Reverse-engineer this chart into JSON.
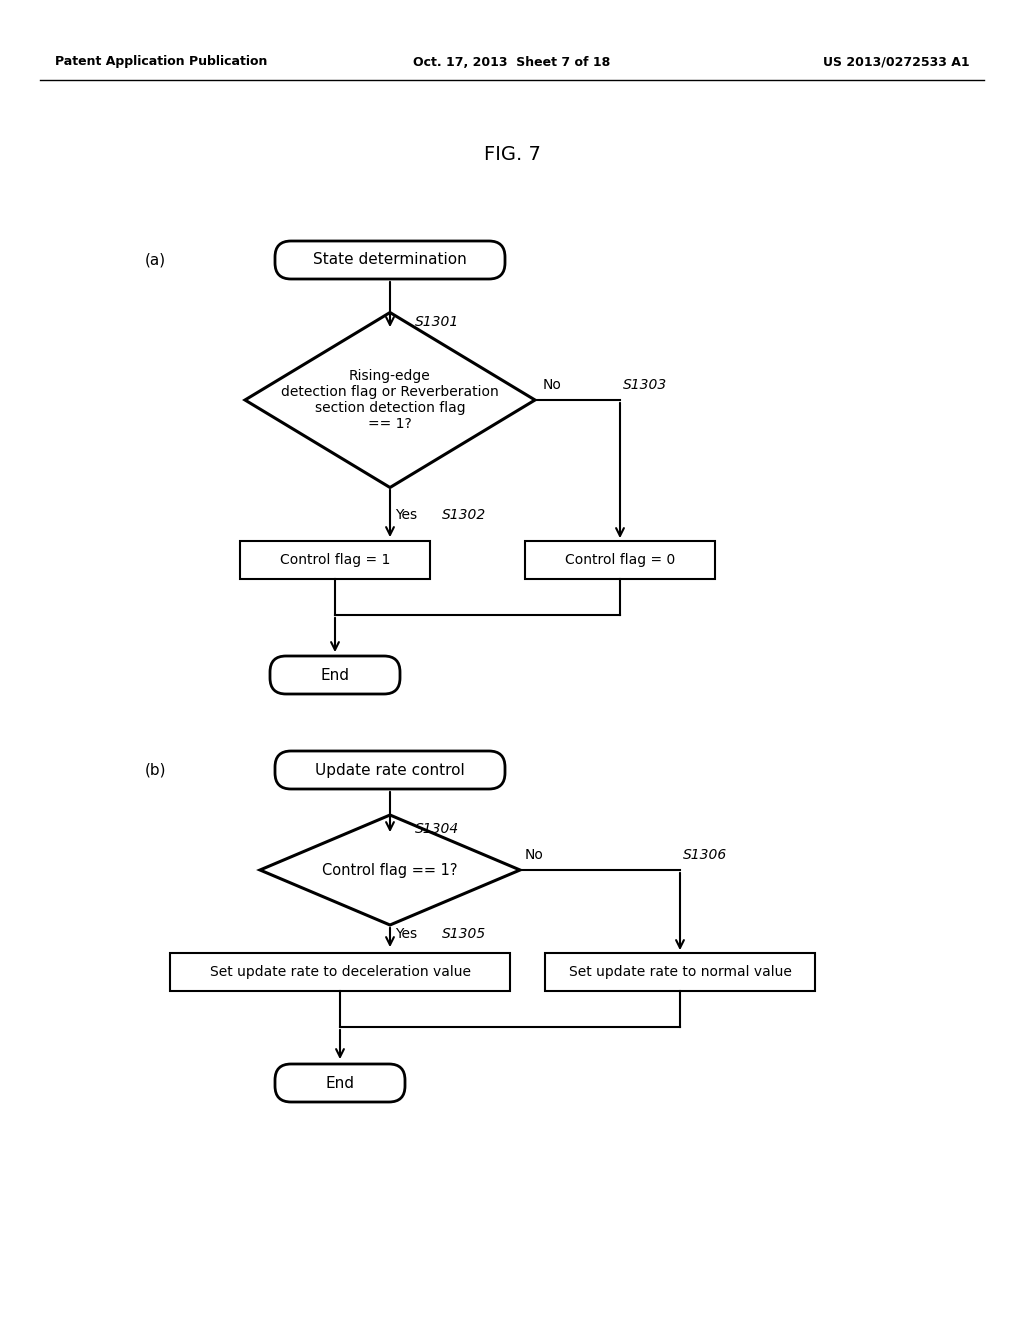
{
  "background_color": "#ffffff",
  "fig_label": "FIG. 7",
  "header_left": "Patent Application Publication",
  "header_center": "Oct. 17, 2013  Sheet 7 of 18",
  "header_right": "US 2013/0272533 A1",
  "diagram_a": {
    "label": "(a)",
    "start_label": "State determination",
    "diamond_label": "Rising-edge\ndetection flag or Reverberation\nsection detection flag\n== 1?",
    "diamond_step": "S1301",
    "yes_box_label": "Control flag = 1",
    "yes_box_step": "S1302",
    "no_box_label": "Control flag = 0",
    "no_box_step": "S1303",
    "end_label": "End",
    "yes_label": "Yes",
    "no_label": "No"
  },
  "diagram_b": {
    "label": "(b)",
    "start_label": "Update rate control",
    "diamond_label": "Control flag == 1?",
    "diamond_step": "S1304",
    "yes_box_label": "Set update rate to deceleration value",
    "yes_box_step": "S1305",
    "no_box_label": "Set update rate to normal value",
    "no_box_step": "S1306",
    "end_label": "End",
    "yes_label": "Yes",
    "no_label": "No"
  }
}
